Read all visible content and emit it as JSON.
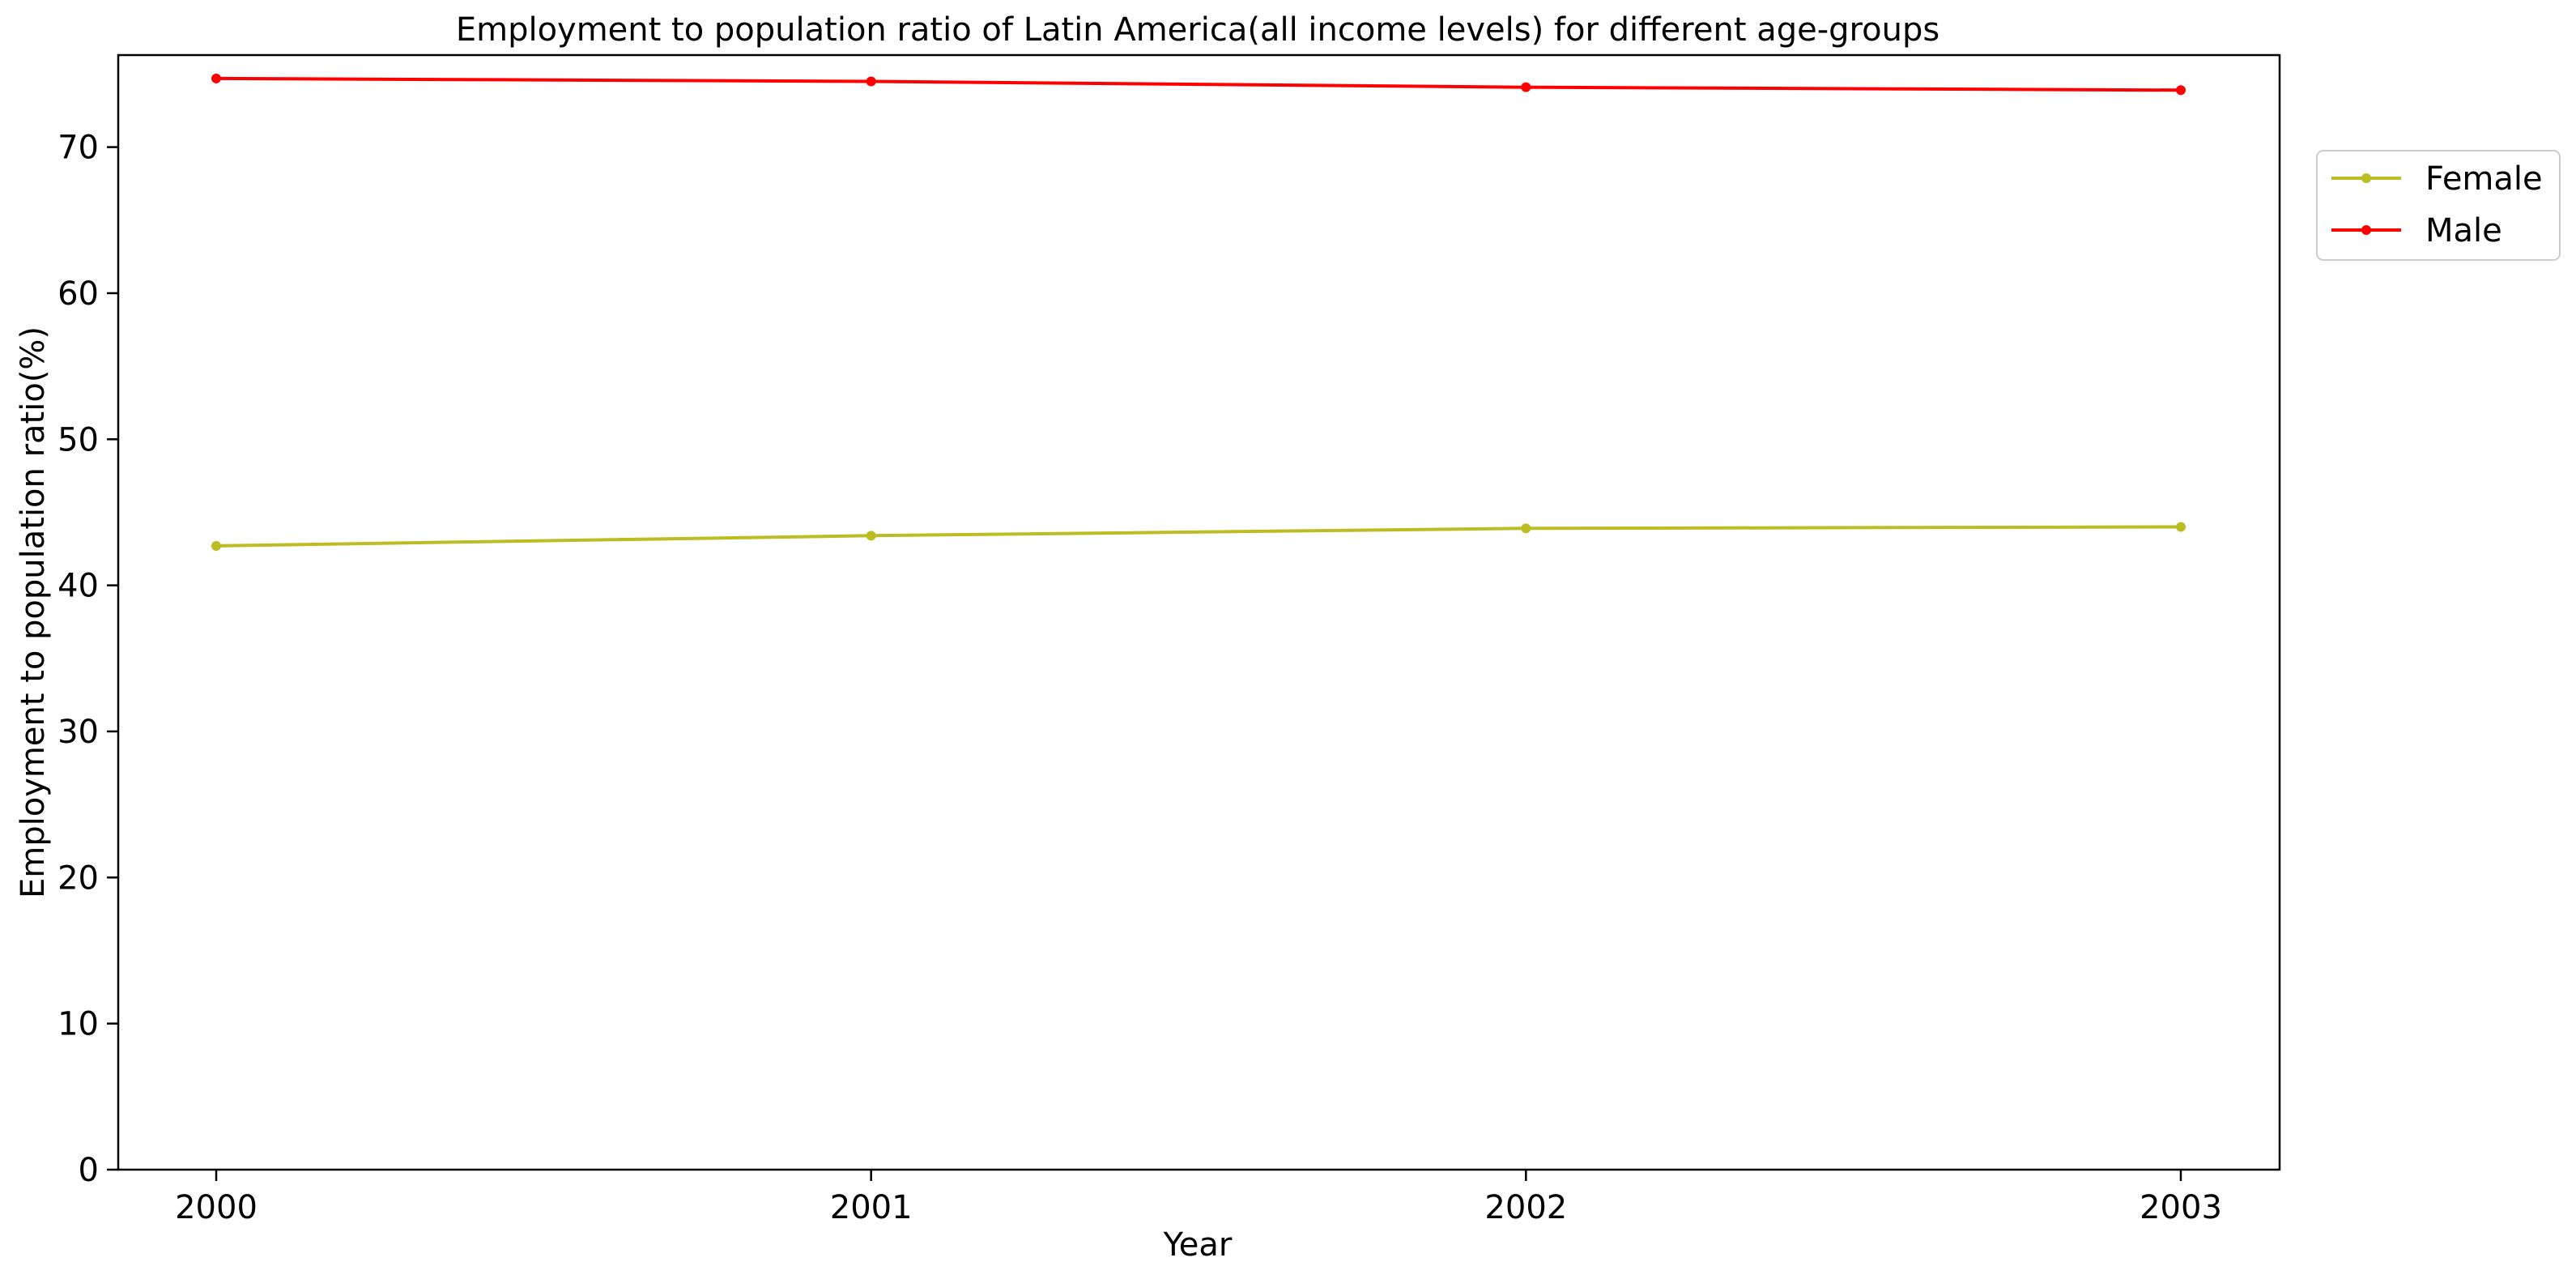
{
  "chart_data": {
    "type": "line",
    "title": "Employment to population ratio of Latin America(all income levels) for different age-groups",
    "xlabel": "Year",
    "ylabel": "Employment to population ratio(%)",
    "x": [
      2000,
      2001,
      2002,
      2003
    ],
    "x_tick_labels": [
      "2000",
      "2001",
      "2002",
      "2003"
    ],
    "ylim": [
      0,
      76.3
    ],
    "y_ticks": [
      0,
      10,
      20,
      30,
      40,
      50,
      60,
      70
    ],
    "y_tick_labels": [
      "0",
      "10",
      "20",
      "30",
      "40",
      "50",
      "60",
      "70"
    ],
    "grid": false,
    "legend_position": "outside-top-right",
    "series": [
      {
        "name": "Female",
        "color": "#bcbd22",
        "values": [
          42.7,
          43.4,
          43.9,
          44.0
        ]
      },
      {
        "name": "Male",
        "color": "#ff0000",
        "values": [
          74.7,
          74.5,
          74.1,
          73.9
        ]
      }
    ]
  }
}
